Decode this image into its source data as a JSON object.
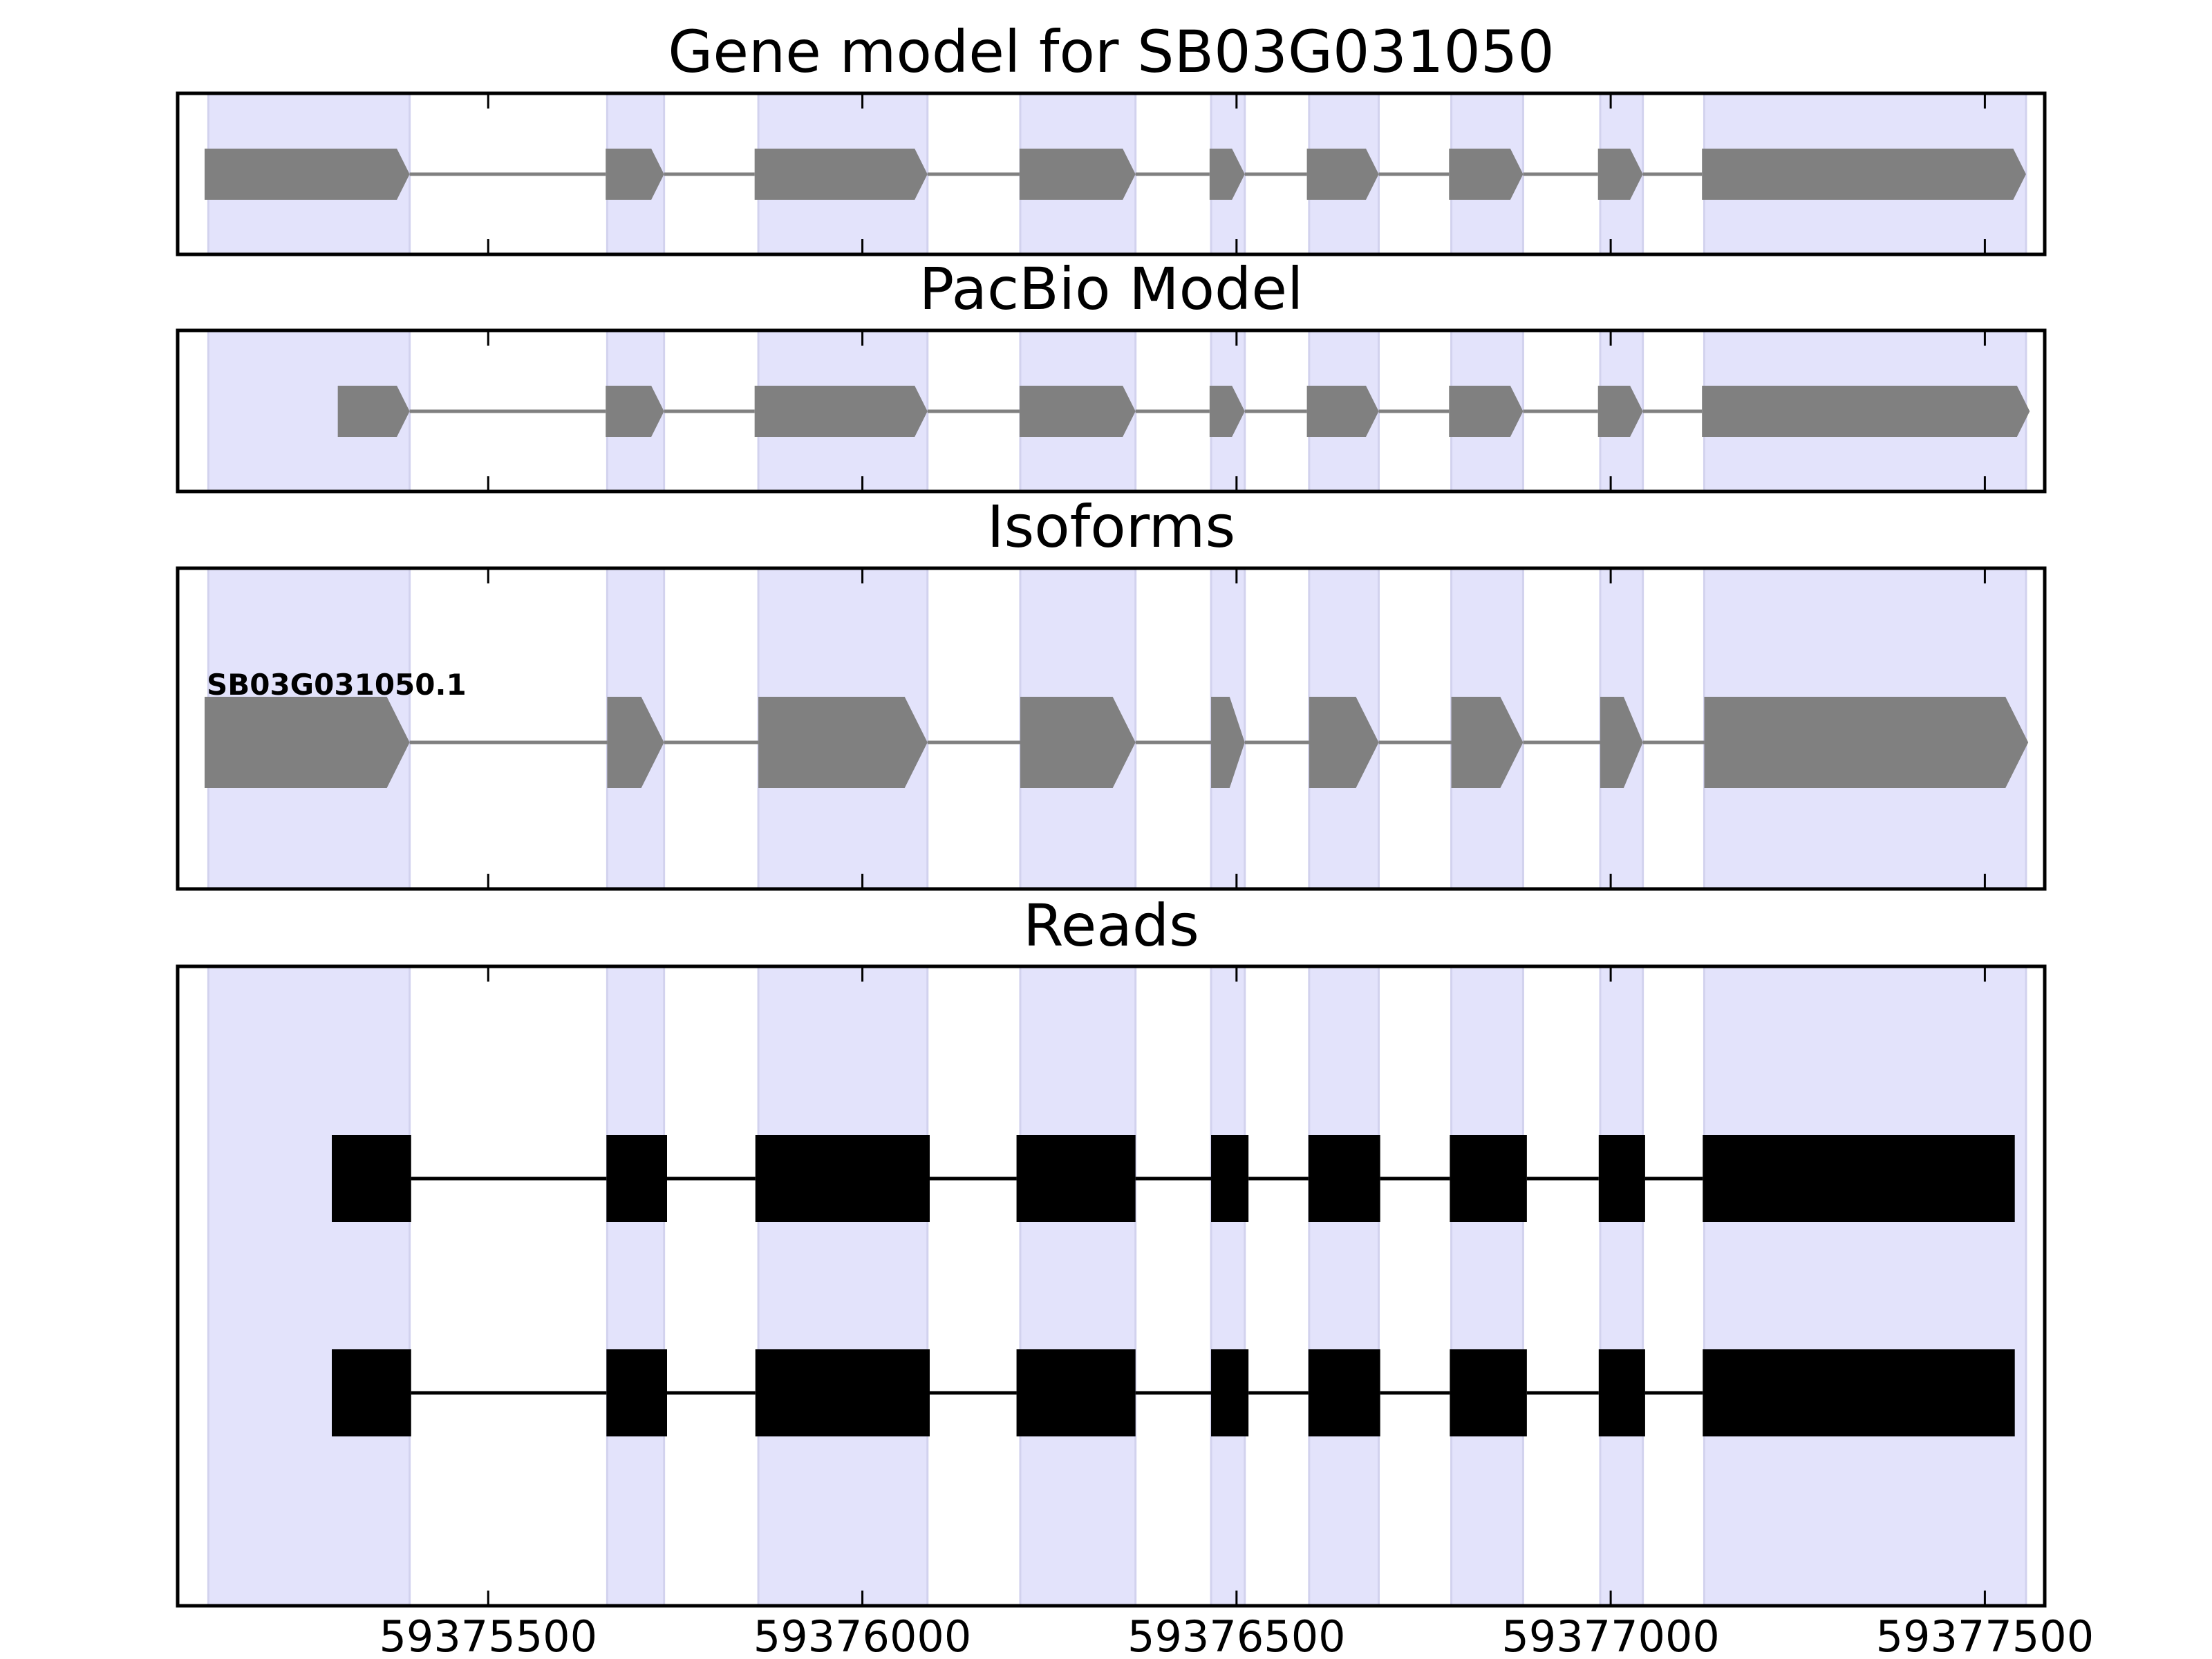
{
  "chart_data": {
    "type": "gene-track",
    "x_range": [
      59375085,
      59377580
    ],
    "x_ticks": [
      59375500,
      59376000,
      59376500,
      59377000,
      59377500
    ],
    "x_tick_labels": [
      "59375500",
      "59376000",
      "59376500",
      "59377000",
      "59377500"
    ],
    "colors": {
      "exon_highlight": "#e3e3fb",
      "model_feature": "#808080",
      "read_feature": "#000000",
      "frame": "#000000",
      "background": "#ffffff"
    },
    "highlight_regions": [
      [
        59375126,
        59375395
      ],
      [
        59375659,
        59375735
      ],
      [
        59375861,
        59376087
      ],
      [
        59376211,
        59376365
      ],
      [
        59376466,
        59376511
      ],
      [
        59376597,
        59376690
      ],
      [
        59376787,
        59376883
      ],
      [
        59376986,
        59377043
      ],
      [
        59377125,
        59377555
      ]
    ],
    "panels": [
      {
        "title": "Gene model for SB03G031050",
        "kind": "model",
        "tracks": [
          {
            "label": "",
            "exons": [
              [
                59375121,
                59375395
              ],
              [
                59375657,
                59375735
              ],
              [
                59375856,
                59376087
              ],
              [
                59376210,
                59376365
              ],
              [
                59376464,
                59376511
              ],
              [
                59376594,
                59376690
              ],
              [
                59376784,
                59376883
              ],
              [
                59376983,
                59377043
              ],
              [
                59377122,
                59377555
              ]
            ]
          }
        ]
      },
      {
        "title": "PacBio Model",
        "kind": "model",
        "tracks": [
          {
            "label": "",
            "exons": [
              [
                59375299,
                59375395
              ],
              [
                59375657,
                59375735
              ],
              [
                59375856,
                59376087
              ],
              [
                59376210,
                59376365
              ],
              [
                59376464,
                59376511
              ],
              [
                59376594,
                59376690
              ],
              [
                59376784,
                59376883
              ],
              [
                59376983,
                59377043
              ],
              [
                59377122,
                59377560
              ]
            ]
          }
        ]
      },
      {
        "title": "Isoforms",
        "kind": "model",
        "tracks": [
          {
            "label": "SB03G031050.1",
            "exons": [
              [
                59375121,
                59375395
              ],
              [
                59375659,
                59375735
              ],
              [
                59375861,
                59376087
              ],
              [
                59376211,
                59376365
              ],
              [
                59376466,
                59376511
              ],
              [
                59376597,
                59376690
              ],
              [
                59376787,
                59376883
              ],
              [
                59376986,
                59377043
              ],
              [
                59377125,
                59377558
              ]
            ]
          }
        ]
      },
      {
        "title": "Reads",
        "kind": "reads",
        "tracks": [
          {
            "label": "",
            "exons": [
              [
                59375291,
                59375397
              ],
              [
                59375658,
                59375739
              ],
              [
                59375857,
                59376090
              ],
              [
                59376206,
                59376365
              ],
              [
                59376466,
                59376516
              ],
              [
                59376596,
                59376692
              ],
              [
                59376785,
                59376888
              ],
              [
                59376984,
                59377046
              ],
              [
                59377123,
                59377540
              ]
            ]
          },
          {
            "label": "",
            "exons": [
              [
                59375291,
                59375397
              ],
              [
                59375658,
                59375739
              ],
              [
                59375857,
                59376090
              ],
              [
                59376206,
                59376365
              ],
              [
                59376466,
                59376516
              ],
              [
                59376596,
                59376692
              ],
              [
                59376785,
                59376888
              ],
              [
                59376984,
                59377046
              ],
              [
                59377123,
                59377540
              ]
            ]
          }
        ]
      }
    ]
  }
}
